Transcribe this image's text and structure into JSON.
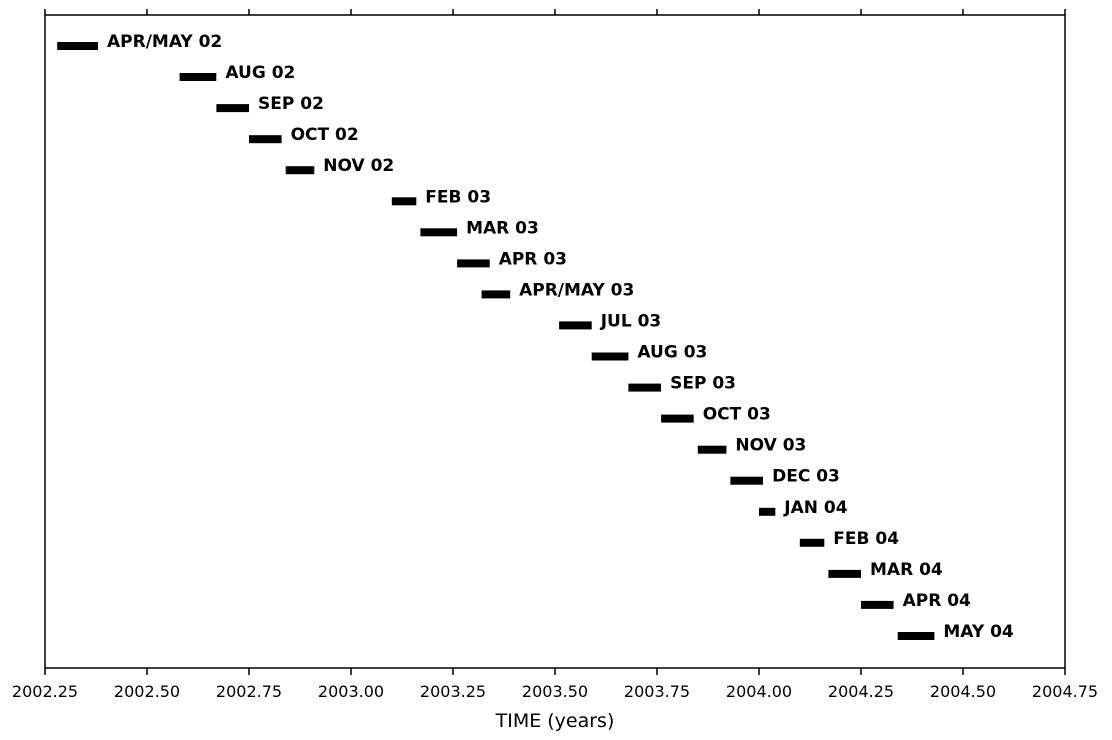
{
  "chart_data": {
    "type": "bar",
    "orientation": "horizontal-timeline",
    "xlabel": "TIME (years)",
    "ylabel": "",
    "xlim": [
      2002.25,
      2004.75
    ],
    "grid": false,
    "x_ticks": [
      "2002.25",
      "2002.50",
      "2002.75",
      "2003.00",
      "2003.25",
      "2003.50",
      "2003.75",
      "2004.00",
      "2004.25",
      "2004.50",
      "2004.75"
    ],
    "x_tick_values": [
      2002.25,
      2002.5,
      2002.75,
      2003.0,
      2003.25,
      2003.5,
      2003.75,
      2004.0,
      2004.25,
      2004.5,
      2004.75
    ],
    "bar_color": "#000000",
    "intervals": [
      {
        "label": "APR/MAY 02",
        "start": 2002.28,
        "end": 2002.38
      },
      {
        "label": "AUG 02",
        "start": 2002.58,
        "end": 2002.67
      },
      {
        "label": "SEP 02",
        "start": 2002.67,
        "end": 2002.75
      },
      {
        "label": "OCT 02",
        "start": 2002.75,
        "end": 2002.83
      },
      {
        "label": "NOV 02",
        "start": 2002.84,
        "end": 2002.91
      },
      {
        "label": "FEB 03",
        "start": 2003.1,
        "end": 2003.16
      },
      {
        "label": "MAR 03",
        "start": 2003.17,
        "end": 2003.26
      },
      {
        "label": "APR 03",
        "start": 2003.26,
        "end": 2003.34
      },
      {
        "label": "APR/MAY 03",
        "start": 2003.32,
        "end": 2003.39
      },
      {
        "label": "JUL 03",
        "start": 2003.51,
        "end": 2003.59
      },
      {
        "label": "AUG 03",
        "start": 2003.59,
        "end": 2003.68
      },
      {
        "label": "SEP 03",
        "start": 2003.68,
        "end": 2003.76
      },
      {
        "label": "OCT 03",
        "start": 2003.76,
        "end": 2003.84
      },
      {
        "label": "NOV 03",
        "start": 2003.85,
        "end": 2003.92
      },
      {
        "label": "DEC 03",
        "start": 2003.93,
        "end": 2004.01
      },
      {
        "label": "JAN 04",
        "start": 2004.0,
        "end": 2004.04
      },
      {
        "label": "FEB 04",
        "start": 2004.1,
        "end": 2004.16
      },
      {
        "label": "MAR 04",
        "start": 2004.17,
        "end": 2004.25
      },
      {
        "label": "APR 04",
        "start": 2004.25,
        "end": 2004.33
      },
      {
        "label": "MAY 04",
        "start": 2004.34,
        "end": 2004.43
      }
    ]
  }
}
